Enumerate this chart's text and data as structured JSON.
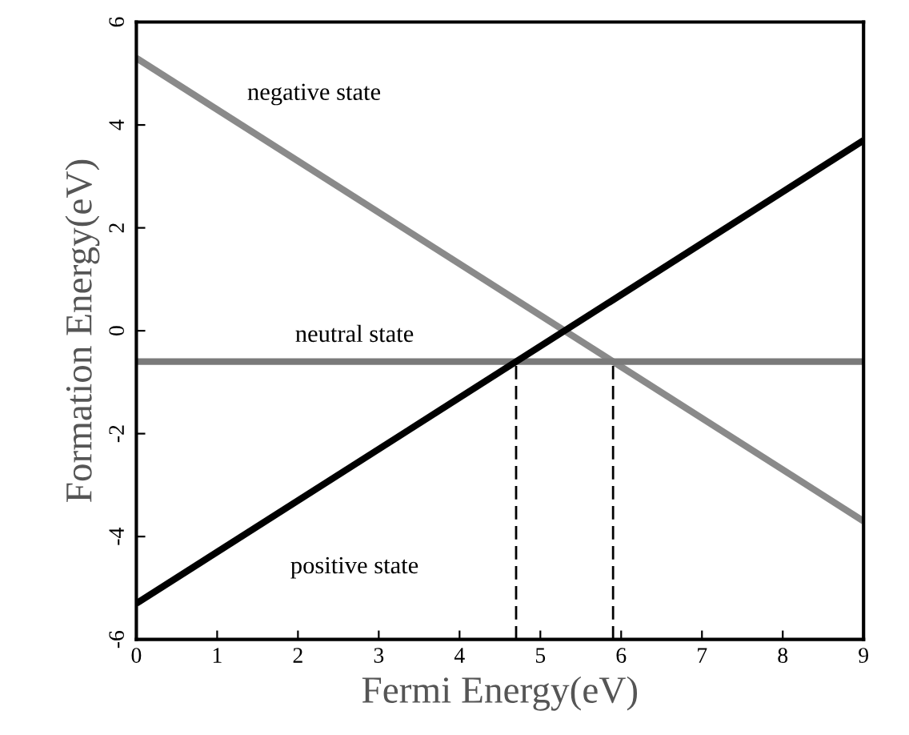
{
  "chart_data": {
    "type": "line",
    "xlabel": "Fermi Energy(eV)",
    "ylabel": "Formation Energy(eV)",
    "xlim": [
      0,
      9
    ],
    "ylim": [
      -6,
      6
    ],
    "xticks": [
      0,
      1,
      2,
      3,
      4,
      5,
      6,
      7,
      8,
      9
    ],
    "yticks": [
      -6,
      -4,
      -2,
      0,
      2,
      4,
      6
    ],
    "series": [
      {
        "name": "negative state",
        "color": "#8a8a8a",
        "x": [
          0,
          9
        ],
        "values": [
          5.3,
          -3.7
        ]
      },
      {
        "name": "neutral state",
        "color": "#7a7a7a",
        "x": [
          0,
          9
        ],
        "values": [
          -0.6,
          -0.6
        ]
      },
      {
        "name": "positive state",
        "color": "#000000",
        "x": [
          0,
          9
        ],
        "values": [
          -5.3,
          3.7
        ]
      },
      {
        "color": "#000000",
        "x": [
          4.7,
          4.7
        ],
        "values": [
          -6,
          -0.6
        ],
        "line_style": "dashed"
      },
      {
        "color": "#000000",
        "x": [
          5.9,
          5.9
        ],
        "values": [
          -6,
          -0.6
        ],
        "line_style": "dashed"
      }
    ]
  }
}
